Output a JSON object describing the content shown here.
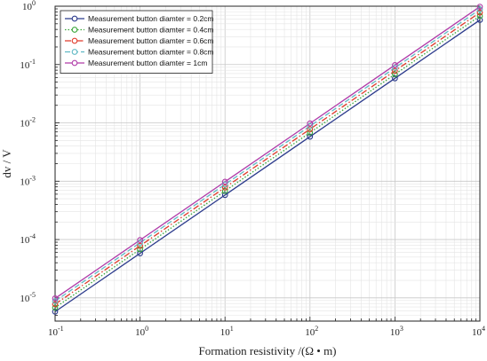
{
  "chart_data": {
    "type": "line",
    "xlabel": "Formation resistivity /(Ω • m)",
    "ylabel": "dv / V",
    "x_scale": "log",
    "y_scale": "log",
    "xlim": [
      0.1,
      10000
    ],
    "ylim": [
      4e-06,
      1
    ],
    "x_ticks": [
      {
        "value": 0.1,
        "base": "10",
        "exp": "-1"
      },
      {
        "value": 1,
        "base": "10",
        "exp": "0"
      },
      {
        "value": 10,
        "base": "10",
        "exp": "1"
      },
      {
        "value": 100,
        "base": "10",
        "exp": "2"
      },
      {
        "value": 1000,
        "base": "10",
        "exp": "3"
      },
      {
        "value": 10000,
        "base": "10",
        "exp": "4"
      }
    ],
    "y_ticks": [
      {
        "value": 1e-05,
        "base": "10",
        "exp": "-5"
      },
      {
        "value": 0.0001,
        "base": "10",
        "exp": "-4"
      },
      {
        "value": 0.001,
        "base": "10",
        "exp": "-3"
      },
      {
        "value": 0.01,
        "base": "10",
        "exp": "-2"
      },
      {
        "value": 0.1,
        "base": "10",
        "exp": "-1"
      },
      {
        "value": 1,
        "base": "10",
        "exp": "0"
      }
    ],
    "grid": true,
    "legend_position": "top-left",
    "x": [
      0.1,
      1,
      10,
      100,
      1000,
      10000
    ],
    "series": [
      {
        "name": "Measurement button diamter = 0.2cm",
        "color": "#2b3a8c",
        "dash": "solid",
        "values": [
          5.8e-06,
          5.8e-05,
          0.00058,
          0.0058,
          0.058,
          0.58
        ]
      },
      {
        "name": "Measurement button diamter = 0.4cm",
        "color": "#3aa63a",
        "dash": "dotted",
        "values": [
          6.8e-06,
          6.8e-05,
          0.00068,
          0.0068,
          0.068,
          0.68
        ]
      },
      {
        "name": "Measurement button diamter = 0.6cm",
        "color": "#e03a2a",
        "dash": "dashdot",
        "values": [
          7.8e-06,
          7.8e-05,
          0.00078,
          0.0078,
          0.078,
          0.78
        ]
      },
      {
        "name": "Measurement button diamter = 0.8cm",
        "color": "#5fb8c4",
        "dash": "dashed",
        "values": [
          8.8e-06,
          8.8e-05,
          0.00088,
          0.0088,
          0.088,
          0.88
        ]
      },
      {
        "name": "Measurement button diamter = 1cm",
        "color": "#b03aa8",
        "dash": "solid",
        "values": [
          9.8e-06,
          9.8e-05,
          0.00098,
          0.0098,
          0.098,
          0.98
        ]
      }
    ]
  }
}
